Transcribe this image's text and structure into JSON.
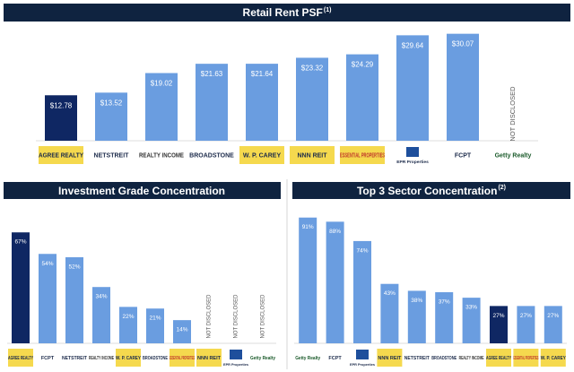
{
  "colors": {
    "header": "#0f2340",
    "bar_default": "#6a9de0",
    "bar_highlight": "#0f2763",
    "value_text_on_default": "#ffffff",
    "value_text_on_highlight": "#ffffff",
    "not_disclosed_text": "#555555",
    "logo_yellow": "#f5d94e"
  },
  "headers": {
    "top": {
      "title": "Retail Rent PSF",
      "sup": "(1)"
    },
    "left": {
      "title": "Investment Grade Concentration",
      "sup": ""
    },
    "right": {
      "title": "Top 3 Sector Concentration",
      "sup": "(2)"
    }
  },
  "logos": {
    "agree": {
      "name": "agree-realty-logo",
      "text": "AGREE REALTY"
    },
    "netstreit": {
      "name": "netstreit-logo",
      "text": "NETSTREIT"
    },
    "realty_income": {
      "name": "realty-income-logo",
      "text": "REALTY INCOME"
    },
    "broadstone": {
      "name": "broadstone-logo",
      "text": "BROADSTONE"
    },
    "wpcarey": {
      "name": "wp-carey-logo",
      "text": "W. P. CAREY"
    },
    "nnn": {
      "name": "nnn-reit-logo",
      "text": "NNN REIT"
    },
    "essential": {
      "name": "essential-properties-logo",
      "text": "ESSENTIAL PROPERTIES"
    },
    "epr": {
      "name": "epr-properties-logo",
      "text": "EPR Properties"
    },
    "fcpt": {
      "name": "fcpt-logo",
      "text": "FCPT"
    },
    "getty": {
      "name": "getty-realty-logo",
      "text": "Getty Realty"
    }
  },
  "chart_data": [
    {
      "type": "bar",
      "title": "Retail Rent PSF",
      "categories": [
        "AGREE REALTY",
        "NETSTREIT",
        "REALTY INCOME",
        "BROADSTONE",
        "W. P. CAREY",
        "NNN REIT",
        "ESSENTIAL PROPERTIES",
        "EPR Properties",
        "FCPT",
        "Getty Realty"
      ],
      "values": [
        12.78,
        13.52,
        19.02,
        21.63,
        21.64,
        23.32,
        24.29,
        29.64,
        30.07,
        null
      ],
      "labels": [
        "$12.78",
        "$13.52",
        "$19.02",
        "$21.63",
        "$21.64",
        "$23.32",
        "$24.29",
        "$29.64",
        "$30.07",
        "NOT DISCLOSED"
      ],
      "highlight_index": 0,
      "ylim": [
        0,
        32
      ],
      "logo_keys": [
        "agree",
        "netstreit",
        "realty_income",
        "broadstone",
        "wpcarey",
        "nnn",
        "essential",
        "epr",
        "fcpt",
        "getty"
      ]
    },
    {
      "type": "bar",
      "title": "Investment Grade Concentration",
      "categories": [
        "AGREE REALTY",
        "FCPT",
        "NETSTREIT",
        "REALTY INCOME",
        "W. P. CAREY",
        "BROADSTONE",
        "ESSENTIAL PROPERTIES",
        "NNN REIT",
        "EPR Properties",
        "Getty Realty"
      ],
      "values": [
        67,
        54,
        52,
        34,
        22,
        21,
        14,
        null,
        null,
        null
      ],
      "labels": [
        "67%",
        "54%",
        "52%",
        "34%",
        "22%",
        "21%",
        "14%",
        "NOT DISCLOSED",
        "NOT DISCLOSED",
        "NOT DISCLOSED"
      ],
      "highlight_index": 0,
      "ylim": [
        0,
        72
      ],
      "logo_keys": [
        "agree",
        "fcpt",
        "netstreit",
        "realty_income",
        "wpcarey",
        "broadstone",
        "essential",
        "nnn",
        "epr",
        "getty"
      ]
    },
    {
      "type": "bar",
      "title": "Top 3 Sector Concentration",
      "categories": [
        "Getty Realty",
        "FCPT",
        "EPR Properties",
        "NNN REIT",
        "NETSTREIT",
        "BROADSTONE",
        "REALTY INCOME",
        "AGREE REALTY",
        "ESSENTIAL PROPERTIES",
        "W. P. CAREY"
      ],
      "values": [
        91,
        88,
        74,
        43,
        38,
        37,
        33,
        27,
        27,
        27
      ],
      "labels": [
        "91%",
        "88%",
        "74%",
        "43%",
        "38%",
        "37%",
        "33%",
        "27%",
        "27%",
        "27%"
      ],
      "highlight_index": 7,
      "ylim": [
        0,
        96
      ],
      "logo_keys": [
        "getty",
        "fcpt",
        "epr",
        "nnn",
        "netstreit",
        "broadstone",
        "realty_income",
        "agree",
        "essential",
        "wpcarey"
      ]
    }
  ]
}
